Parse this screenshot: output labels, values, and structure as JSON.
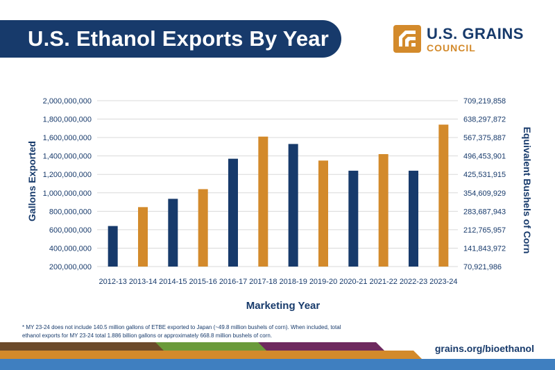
{
  "header": {
    "title": "U.S. Ethanol Exports By Year",
    "logo_name": "U.S. GRAINS",
    "logo_sub": "COUNCIL"
  },
  "chart_data": {
    "type": "bar",
    "categories": [
      "2012-13",
      "2013-14",
      "2014-15",
      "2015-16",
      "2016-17",
      "2017-18",
      "2018-19",
      "2019-20",
      "2020-21",
      "2021-22",
      "2022-23",
      "2023-24"
    ],
    "values": [
      640000000,
      845000000,
      935000000,
      1040000000,
      1370000000,
      1610000000,
      1530000000,
      1350000000,
      1240000000,
      1420000000,
      1240000000,
      1740000000
    ],
    "colors": [
      "#173a6b",
      "#d38a2b",
      "#173a6b",
      "#d38a2b",
      "#173a6b",
      "#d38a2b",
      "#173a6b",
      "#d38a2b",
      "#173a6b",
      "#d38a2b",
      "#173a6b",
      "#d38a2b"
    ],
    "ylim": [
      200000000,
      2000000000
    ],
    "y_ticks": [
      "2,000,000,000",
      "1,800,000,000",
      "1,600,000,000",
      "1,400,000,000",
      "1,200,000,000",
      "1,000,000,000",
      "800,000,000",
      "600,000,000",
      "400,000,000",
      "200,000,000"
    ],
    "y2_ticks": [
      "709,219,858",
      "638,297,872",
      "567,375,887",
      "496,453,901",
      "425,531,915",
      "354,609,929",
      "283,687,943",
      "212,765,957",
      "141,843,972",
      "70,921,986"
    ],
    "ylabel": "Gallons Exported",
    "y2label": "Equivalent Bushels of Corn",
    "xlabel": "Marketing Year",
    "grid": true
  },
  "footer": {
    "footnote_line1": "* MY 23-24 does not include 140.5 million gallons of ETBE exported to Japan  (~49.8 million bushels of corn). When included, total",
    "footnote_line2": "ethanol exports for MY 23-24 total 1.886 billion gallons or approximately 668.8 million bushels of corn.",
    "url": "grains.org/bioethanol"
  },
  "colors": {
    "navy": "#173a6b",
    "orange": "#d38a2b",
    "brown": "#6b4a2b",
    "green": "#6a9a3a",
    "purple": "#6e2a5e",
    "blue": "#3f7fc0"
  }
}
